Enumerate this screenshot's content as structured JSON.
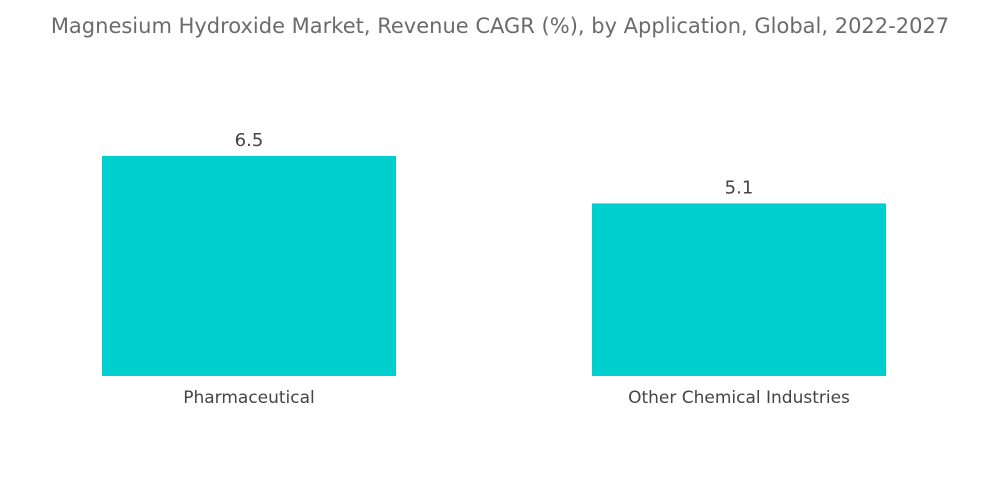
{
  "chart_data": {
    "type": "bar",
    "title": "Magnesium Hydroxide Market, Revenue CAGR (%), by Application, Global, 2022-2027",
    "categories": [
      "Pharmaceutical",
      "Other Chemical Industries"
    ],
    "values": [
      6.5,
      5.1
    ],
    "value_labels": [
      "6.5",
      "5.1"
    ],
    "xlabel": "",
    "ylabel": "",
    "ylim": [
      0,
      6.5
    ],
    "grid": false,
    "legend": "none",
    "colors": {
      "bar": "#00cfcf",
      "title": "#6b6b6b",
      "label": "#444444"
    }
  }
}
